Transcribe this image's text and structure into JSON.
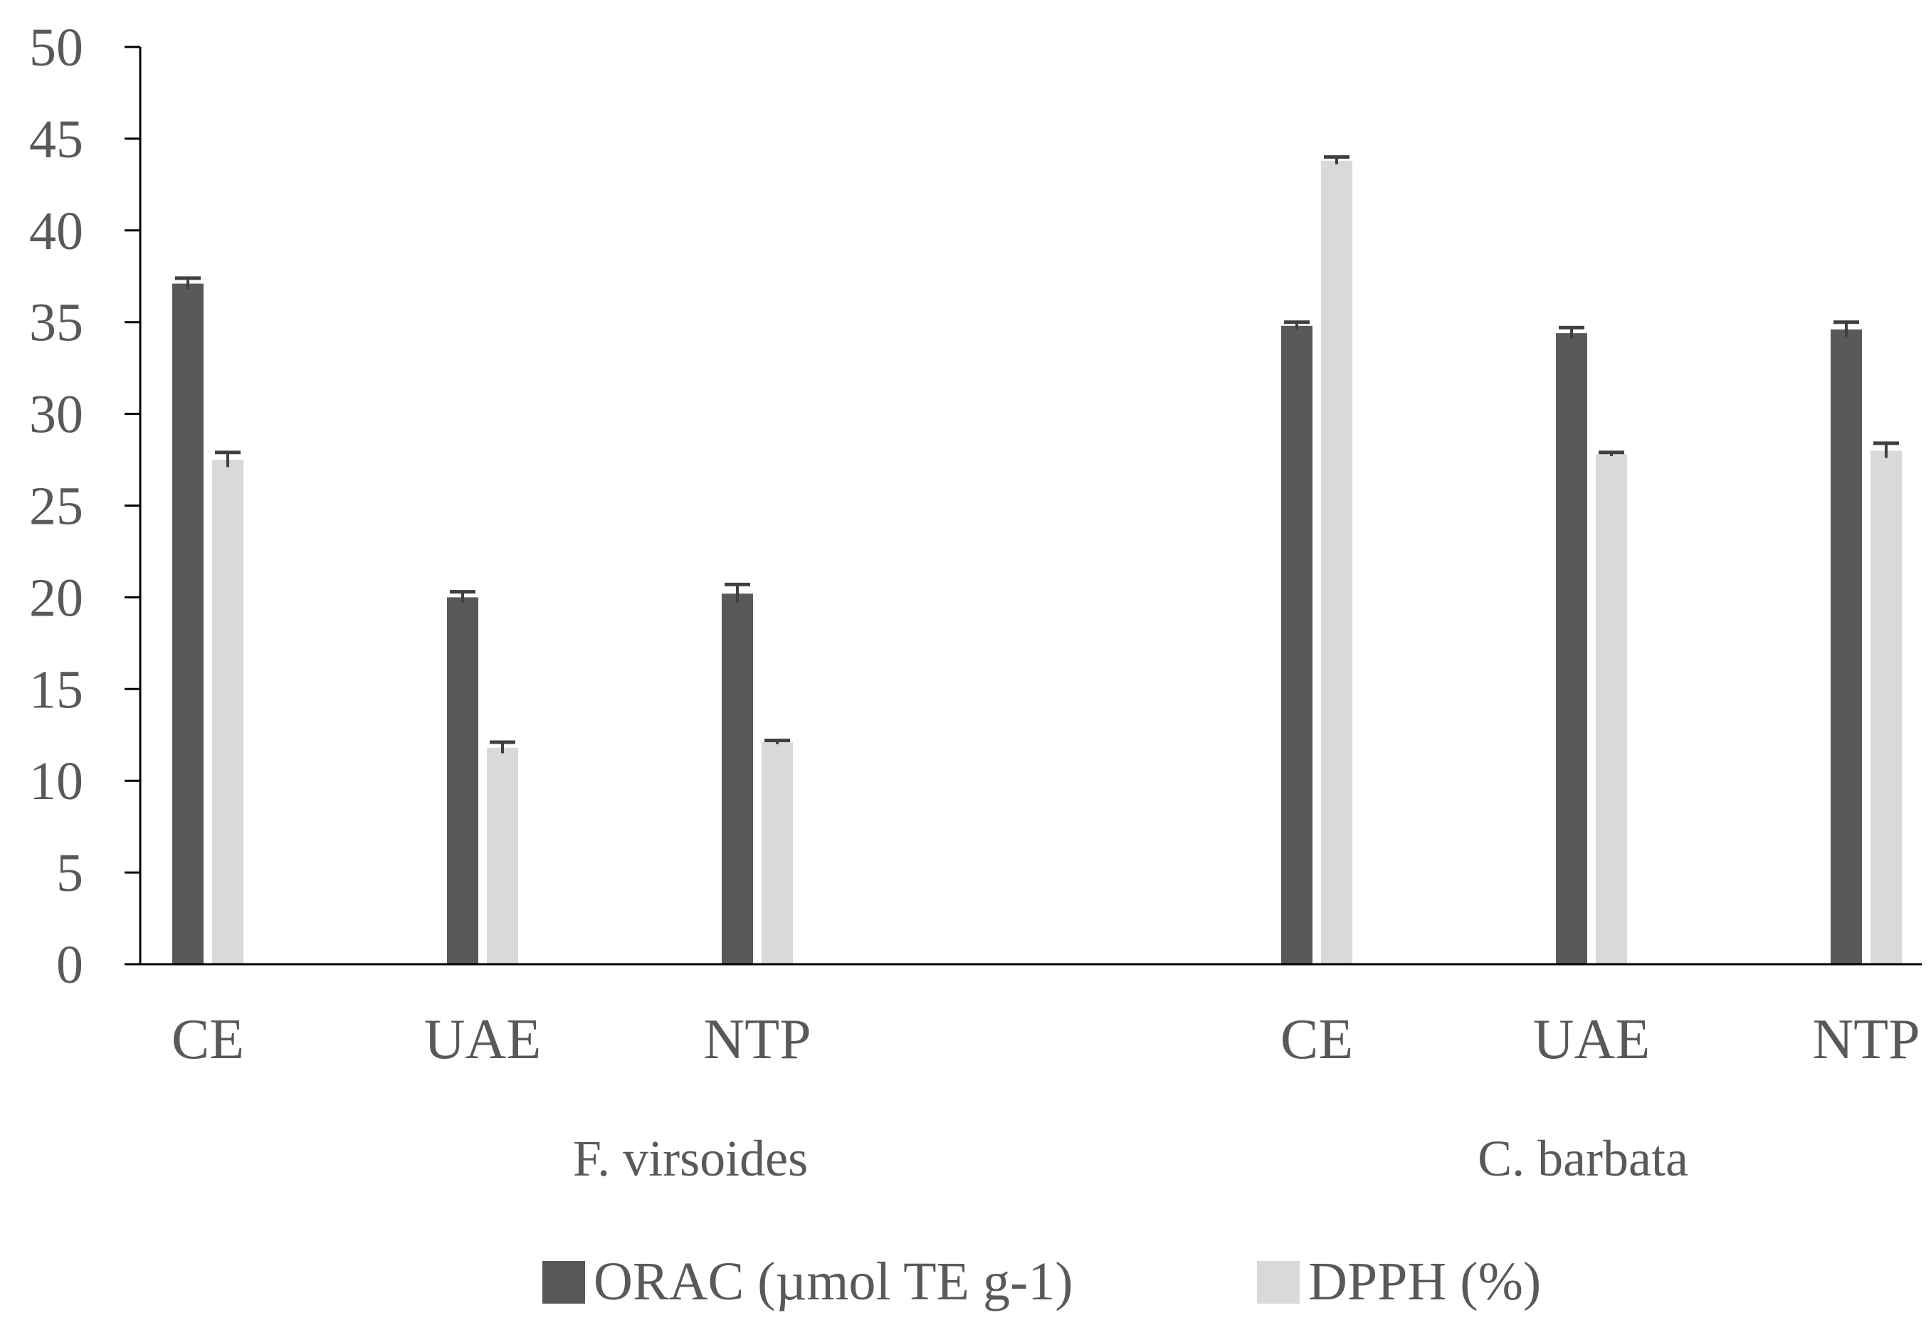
{
  "chart_data": {
    "type": "bar",
    "title": "",
    "xlabel": "",
    "ylabel": "",
    "ylim": [
      0,
      50
    ],
    "yticks": [
      0,
      5,
      10,
      15,
      20,
      25,
      30,
      35,
      40,
      45,
      50
    ],
    "groups": [
      {
        "name": "F. virsoides",
        "categories": [
          "CE",
          "UAE",
          "NTP"
        ]
      },
      {
        "name": "C. barbata",
        "categories": [
          "CE",
          "UAE",
          "NTP"
        ]
      }
    ],
    "series": [
      {
        "name": "ORAC (µmol TE g-1)",
        "color": "#595959",
        "values": [
          37.1,
          20.0,
          20.2,
          34.8,
          34.4,
          34.6
        ],
        "errors": [
          0.3,
          0.3,
          0.5,
          0.2,
          0.3,
          0.4
        ]
      },
      {
        "name": "DPPH (%)",
        "color": "#d9d9d9",
        "values": [
          27.5,
          11.8,
          12.1,
          43.8,
          27.8,
          28.0
        ],
        "errors": [
          0.4,
          0.3,
          0.1,
          0.2,
          0.1,
          0.4
        ]
      }
    ],
    "legend_position": "bottom"
  }
}
